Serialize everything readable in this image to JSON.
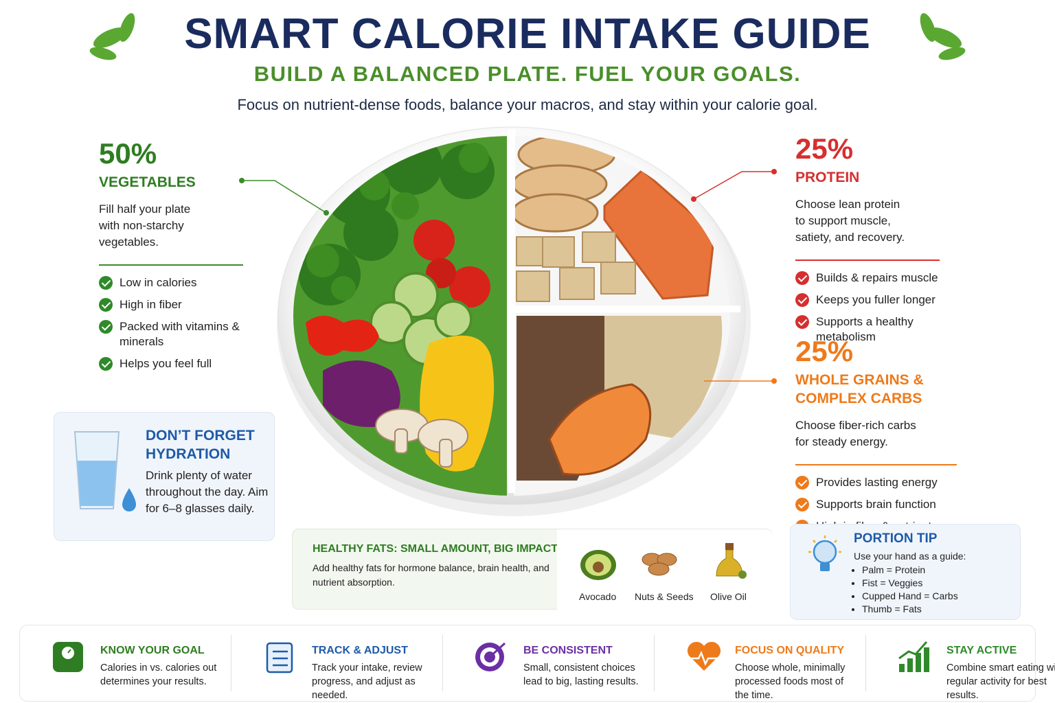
{
  "header": {
    "title": "SMART CALORIE INTAKE GUIDE",
    "subtitle": "BUILD A BALANCED PLATE. FUEL YOUR GOALS.",
    "tagline": "Focus on nutrient-dense foods, balance your macros, and stay within your calorie goal."
  },
  "sections": {
    "vegetables": {
      "percent": "50%",
      "label": "VEGETABLES",
      "description": "Fill half your plate with non-starchy vegetables.",
      "bullets": [
        "Low in calories",
        "High in fiber",
        "Packed with vitamins & minerals",
        "Helps you feel full"
      ]
    },
    "protein": {
      "percent": "25%",
      "label": "PROTEIN",
      "description": "Choose lean protein to support muscle, satiety, and recovery.",
      "bullets": [
        "Builds & repairs muscle",
        "Keeps you fuller longer",
        "Supports a healthy metabolism"
      ]
    },
    "grains": {
      "percent": "25%",
      "label": "WHOLE GRAINS & COMPLEX CARBS",
      "description": "Choose fiber-rich carbs for steady energy.",
      "bullets": [
        "Provides lasting energy",
        "Supports brain function",
        "High in fiber & nutrients"
      ]
    }
  },
  "hydration": {
    "title": "DON’T FORGET HYDRATION",
    "text": "Drink plenty of water throughout the day. Aim for 6–8 glasses daily."
  },
  "fats": {
    "title": "HEALTHY FATS: SMALL AMOUNT, BIG IMPACT",
    "text": "Add healthy fats for hormone balance, brain health, and nutrient absorption.",
    "items": [
      "Avocado",
      "Nuts & Seeds",
      "Olive Oil"
    ]
  },
  "portion": {
    "title": "PORTION TIP",
    "intro": "Use your hand as a guide:",
    "items": [
      "Palm = Protein",
      "Fist = Veggies",
      "Cupped Hand = Carbs",
      "Thumb = Fats"
    ]
  },
  "tips": [
    {
      "title": "KNOW YOUR GOAL",
      "text": "Calories in vs. calories out determines your results."
    },
    {
      "title": "TRACK & ADJUST",
      "text": "Track your intake, review progress, and adjust as needed."
    },
    {
      "title": "BE CONSISTENT",
      "text": "Small, consistent choices lead to big, lasting results."
    },
    {
      "title": "FOCUS ON QUALITY",
      "text": "Choose whole, minimally processed foods most of the time."
    },
    {
      "title": "STAY ACTIVE",
      "text": "Combine smart eating with regular activity for best results."
    }
  ]
}
